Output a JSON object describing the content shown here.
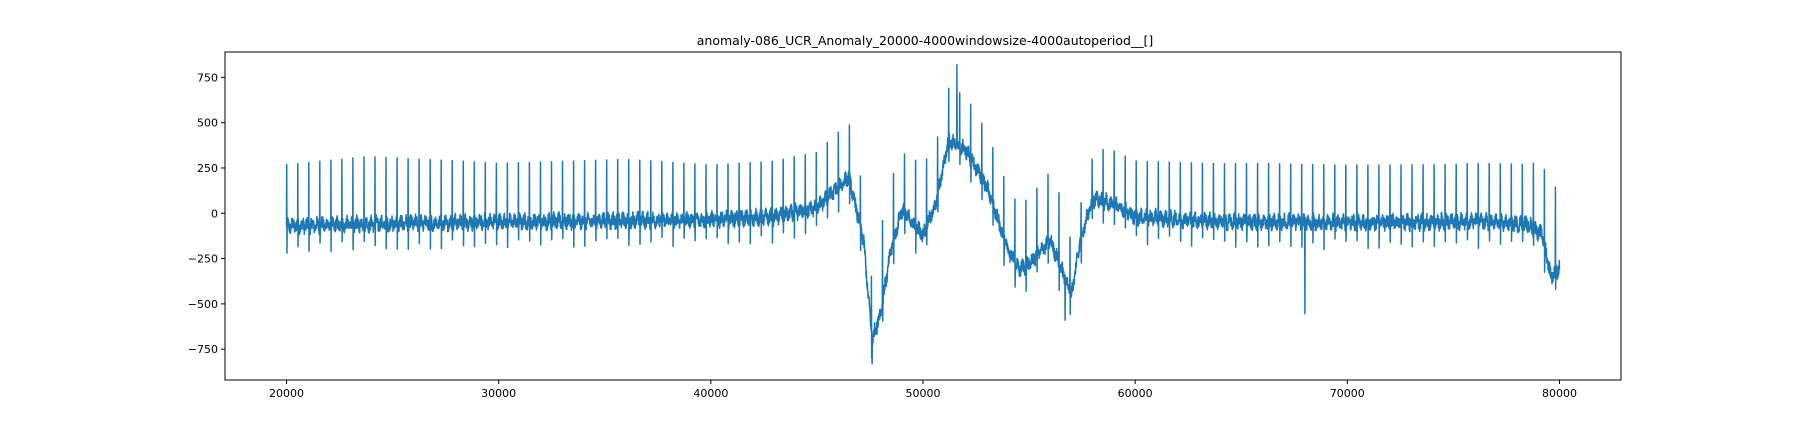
{
  "chart_data": {
    "type": "line",
    "title": "anomaly-086_UCR_Anomaly_20000-4000windowsize-4000autoperiod__[]",
    "xlabel": "",
    "ylabel": "",
    "xlim": [
      17100,
      82900
    ],
    "ylim": [
      -920,
      890
    ],
    "x_ticks": [
      20000,
      30000,
      40000,
      50000,
      60000,
      70000,
      80000
    ],
    "x_tick_labels": [
      "20000",
      "30000",
      "40000",
      "50000",
      "60000",
      "70000",
      "80000"
    ],
    "y_ticks": [
      -750,
      -500,
      -250,
      0,
      250,
      500,
      750
    ],
    "y_tick_labels": [
      "−750",
      "−500",
      "−250",
      "0",
      "250",
      "500",
      "750"
    ],
    "grid": false,
    "line_color": "#1f77b4",
    "x_range": [
      20000,
      80000
    ],
    "beat_period": 520,
    "baseline": [
      [
        20000,
        -70
      ],
      [
        24000,
        -60
      ],
      [
        28000,
        -50
      ],
      [
        32000,
        -45
      ],
      [
        36000,
        -40
      ],
      [
        40000,
        -35
      ],
      [
        43000,
        -20
      ],
      [
        45000,
        30
      ],
      [
        46500,
        200
      ],
      [
        47200,
        -150
      ],
      [
        47600,
        -700
      ],
      [
        48000,
        -550
      ],
      [
        48500,
        -200
      ],
      [
        49000,
        20
      ],
      [
        50000,
        -120
      ],
      [
        50600,
        50
      ],
      [
        51200,
        400
      ],
      [
        52000,
        350
      ],
      [
        53000,
        150
      ],
      [
        54000,
        -200
      ],
      [
        54500,
        -310
      ],
      [
        55000,
        -280
      ],
      [
        56000,
        -150
      ],
      [
        56500,
        -300
      ],
      [
        57000,
        -450
      ],
      [
        57400,
        -150
      ],
      [
        58000,
        80
      ],
      [
        59000,
        50
      ],
      [
        60000,
        -20
      ],
      [
        64000,
        -45
      ],
      [
        68000,
        -50
      ],
      [
        72000,
        -50
      ],
      [
        76000,
        -45
      ],
      [
        78500,
        -60
      ],
      [
        79200,
        -120
      ],
      [
        79600,
        -350
      ],
      [
        80000,
        -300
      ]
    ],
    "spike_amplitude": [
      [
        20000,
        470
      ],
      [
        23800,
        520
      ],
      [
        30000,
        450
      ],
      [
        36000,
        470
      ],
      [
        40000,
        420
      ],
      [
        44000,
        430
      ],
      [
        46800,
        420
      ],
      [
        47400,
        350
      ],
      [
        48000,
        640
      ],
      [
        49000,
        440
      ],
      [
        50000,
        540
      ],
      [
        51000,
        400
      ],
      [
        52000,
        420
      ],
      [
        53000,
        420
      ],
      [
        54000,
        480
      ],
      [
        55500,
        520
      ],
      [
        56500,
        540
      ],
      [
        57500,
        250
      ],
      [
        58500,
        400
      ],
      [
        60000,
        430
      ],
      [
        66000,
        450
      ],
      [
        70000,
        440
      ],
      [
        75000,
        440
      ],
      [
        78500,
        460
      ],
      [
        80000,
        680
      ]
    ],
    "outliers": [
      {
        "x": 47600,
        "y": -830
      },
      {
        "x": 51600,
        "y": 820
      },
      {
        "x": 68000,
        "y": -555
      },
      {
        "x": 56700,
        "y": -590
      }
    ]
  }
}
